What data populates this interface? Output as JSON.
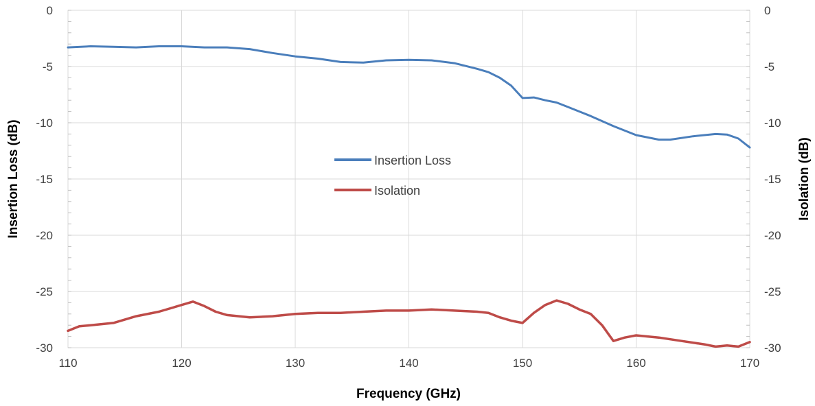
{
  "chart_data": {
    "type": "line",
    "xlabel": "Frequency (GHz)",
    "ylabel": "Insertion Loss (dB)",
    "y2label": "Isolation (dB)",
    "xlim": [
      110,
      170
    ],
    "ylim": [
      -30,
      0
    ],
    "y2lim": [
      -30,
      0
    ],
    "xticks": [
      "110",
      "120",
      "130",
      "140",
      "150",
      "160",
      "170"
    ],
    "yticks": [
      "0",
      "-5",
      "-10",
      "-15",
      "-20",
      "-25",
      "-30"
    ],
    "y2ticks": [
      "0",
      "-5",
      "-10",
      "-15",
      "-20",
      "-25",
      "-30"
    ],
    "grid": true,
    "legend_position": "center",
    "series": [
      {
        "name": "Insertion Loss",
        "color": "#4a7ebb",
        "x": [
          110,
          112,
          114,
          116,
          118,
          120,
          122,
          124,
          126,
          128,
          130,
          132,
          134,
          136,
          138,
          140,
          142,
          144,
          146,
          147,
          148,
          149,
          150,
          151,
          152,
          153,
          154,
          155,
          156,
          158,
          160,
          162,
          163,
          165,
          167,
          168,
          169,
          170
        ],
        "y": [
          -3.3,
          -3.2,
          -3.25,
          -3.3,
          -3.2,
          -3.2,
          -3.3,
          -3.3,
          -3.45,
          -3.8,
          -4.1,
          -4.3,
          -4.6,
          -4.65,
          -4.45,
          -4.4,
          -4.45,
          -4.7,
          -5.2,
          -5.5,
          -6.0,
          -6.7,
          -7.8,
          -7.75,
          -8.0,
          -8.2,
          -8.6,
          -9.0,
          -9.4,
          -10.3,
          -11.1,
          -11.5,
          -11.5,
          -11.2,
          -11.0,
          -11.05,
          -11.4,
          -12.2
        ]
      },
      {
        "name": "Isolation",
        "color": "#be4b48",
        "x": [
          110,
          111,
          112,
          114,
          116,
          118,
          120,
          121,
          122,
          123,
          124,
          126,
          128,
          130,
          132,
          134,
          136,
          138,
          140,
          142,
          144,
          146,
          147,
          148,
          149,
          150,
          151,
          152,
          153,
          154,
          155,
          156,
          157,
          158,
          159,
          160,
          162,
          164,
          166,
          167,
          168,
          169,
          170
        ],
        "y": [
          -28.5,
          -28.1,
          -28.0,
          -27.8,
          -27.2,
          -26.8,
          -26.2,
          -25.9,
          -26.3,
          -26.8,
          -27.1,
          -27.3,
          -27.2,
          -27.0,
          -26.9,
          -26.9,
          -26.8,
          -26.7,
          -26.7,
          -26.6,
          -26.7,
          -26.8,
          -26.9,
          -27.3,
          -27.6,
          -27.8,
          -26.9,
          -26.2,
          -25.8,
          -26.1,
          -26.6,
          -27.0,
          -28.0,
          -29.4,
          -29.1,
          -28.9,
          -29.1,
          -29.4,
          -29.7,
          -29.9,
          -29.8,
          -29.9,
          -29.5
        ]
      }
    ]
  }
}
